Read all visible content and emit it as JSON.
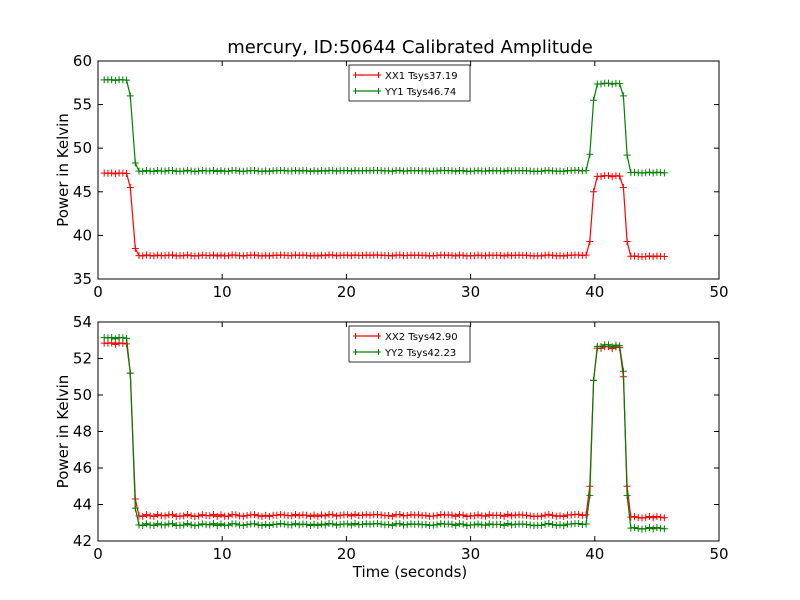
{
  "figure": {
    "title": "mercury, ID:50644 Calibrated Amplitude",
    "xlabel": "Time (seconds)"
  },
  "chart_data": [
    {
      "type": "line",
      "ylabel": "Power in Kelvin",
      "xlim": [
        0,
        50
      ],
      "ylim": [
        35,
        60
      ],
      "xticks": [
        0,
        10,
        20,
        30,
        40,
        50
      ],
      "yticks": [
        35,
        40,
        45,
        50,
        55,
        60
      ],
      "grid": false,
      "legend_position": "top-center",
      "series": [
        {
          "name": "XX1 Tsys37.19",
          "color": "#ff0000",
          "segments": [
            {
              "x": [
                0.5,
                2.3
              ],
              "y": 47.1,
              "step": 0.3
            },
            {
              "x": [
                2.6,
                2.6
              ],
              "y": 45.5
            },
            {
              "x": [
                3.0,
                3.0
              ],
              "y": 38.5
            },
            {
              "x": [
                3.3,
                39.3
              ],
              "y": 37.7,
              "step": 0.3
            },
            {
              "x": [
                39.6,
                39.6
              ],
              "y": 39.3
            },
            {
              "x": [
                39.9,
                39.9
              ],
              "y": 45.0
            },
            {
              "x": [
                40.2,
                42.0
              ],
              "y": 46.8,
              "step": 0.3
            },
            {
              "x": [
                42.3,
                42.3
              ],
              "y": 45.5
            },
            {
              "x": [
                42.6,
                42.6
              ],
              "y": 39.3
            },
            {
              "x": [
                42.9,
                45.6
              ],
              "y": 37.6,
              "step": 0.3
            }
          ]
        },
        {
          "name": "YY1 Tsys46.74",
          "color": "#008000",
          "segments": [
            {
              "x": [
                0.5,
                2.3
              ],
              "y": 57.8,
              "step": 0.3
            },
            {
              "x": [
                2.6,
                2.6
              ],
              "y": 56.0
            },
            {
              "x": [
                3.0,
                3.0
              ],
              "y": 48.3
            },
            {
              "x": [
                3.3,
                39.3
              ],
              "y": 47.4,
              "step": 0.3
            },
            {
              "x": [
                39.6,
                39.6
              ],
              "y": 49.3
            },
            {
              "x": [
                39.9,
                39.9
              ],
              "y": 55.5
            },
            {
              "x": [
                40.2,
                42.0
              ],
              "y": 57.4,
              "step": 0.3
            },
            {
              "x": [
                42.3,
                42.3
              ],
              "y": 56.0
            },
            {
              "x": [
                42.6,
                42.6
              ],
              "y": 49.2
            },
            {
              "x": [
                42.9,
                45.6
              ],
              "y": 47.2,
              "step": 0.3
            }
          ]
        }
      ]
    },
    {
      "type": "line",
      "ylabel": "Power in Kelvin",
      "xlabel": "Time (seconds)",
      "xlim": [
        0,
        50
      ],
      "ylim": [
        42,
        54
      ],
      "xticks": [
        0,
        10,
        20,
        30,
        40,
        50
      ],
      "yticks": [
        42,
        44,
        46,
        48,
        50,
        52,
        54
      ],
      "grid": false,
      "legend_position": "top-center",
      "series": [
        {
          "name": "XX2 Tsys42.90",
          "color": "#ff0000",
          "segments": [
            {
              "x": [
                0.5,
                2.3
              ],
              "y": 52.8,
              "step": 0.3
            },
            {
              "x": [
                2.6,
                2.6
              ],
              "y": 51.2
            },
            {
              "x": [
                3.0,
                3.0
              ],
              "y": 44.3
            },
            {
              "x": [
                3.3,
                39.3
              ],
              "y": 43.4,
              "step": 0.3
            },
            {
              "x": [
                39.6,
                39.6
              ],
              "y": 45.0
            },
            {
              "x": [
                39.9,
                39.9
              ],
              "y": 50.8
            },
            {
              "x": [
                40.2,
                42.0
              ],
              "y": 52.6,
              "step": 0.3
            },
            {
              "x": [
                42.3,
                42.3
              ],
              "y": 51.0
            },
            {
              "x": [
                42.6,
                42.6
              ],
              "y": 45.0
            },
            {
              "x": [
                42.9,
                45.6
              ],
              "y": 43.3,
              "step": 0.3
            }
          ]
        },
        {
          "name": "YY2 Tsys42.23",
          "color": "#008000",
          "segments": [
            {
              "x": [
                0.5,
                2.3
              ],
              "y": 53.1,
              "step": 0.3
            },
            {
              "x": [
                2.6,
                2.6
              ],
              "y": 51.2
            },
            {
              "x": [
                3.0,
                3.0
              ],
              "y": 43.8
            },
            {
              "x": [
                3.3,
                39.3
              ],
              "y": 42.9,
              "step": 0.3
            },
            {
              "x": [
                39.6,
                39.6
              ],
              "y": 44.5
            },
            {
              "x": [
                39.9,
                39.9
              ],
              "y": 50.8
            },
            {
              "x": [
                40.2,
                42.0
              ],
              "y": 52.7,
              "step": 0.3
            },
            {
              "x": [
                42.3,
                42.3
              ],
              "y": 51.3
            },
            {
              "x": [
                42.6,
                42.6
              ],
              "y": 44.5
            },
            {
              "x": [
                42.9,
                45.6
              ],
              "y": 42.7,
              "step": 0.3
            }
          ]
        }
      ]
    }
  ]
}
